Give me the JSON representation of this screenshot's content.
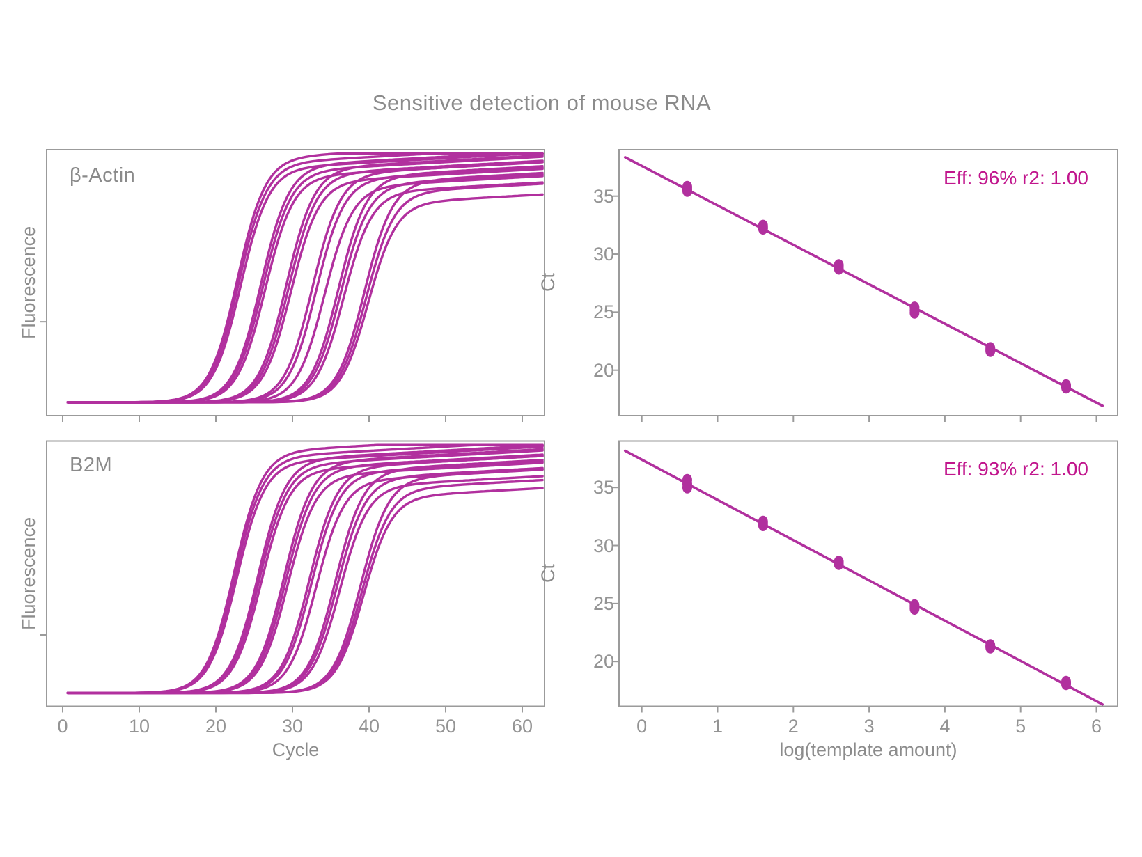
{
  "title": "Sensitive detection of mouse RNA",
  "colors": {
    "curve_magenta": "#b1309e",
    "annotation_magenta": "#c1168d",
    "axis_gray": "#9b9b9b",
    "label_gray": "#8c8c8c",
    "tick_label_gray": "#949494",
    "background": "#ffffff"
  },
  "chart_data": [
    {
      "id": "amplification-beta-actin",
      "type": "line",
      "panel_label": "β-Actin",
      "xlabel": "",
      "ylabel": "Fluorescence",
      "xlim": [
        -2.1,
        62.9
      ],
      "xticks": [
        0,
        10,
        20,
        30,
        40,
        50,
        60
      ],
      "xtick_labels_shown": false,
      "ylim": [
        0,
        1
      ],
      "ytick_fractions": [
        0.353
      ],
      "baseline_fraction": 0.05,
      "sigmoid_steepness": 0.55,
      "replicates_per_group": 3,
      "groups": [
        {
          "ct": 18.6,
          "rise_midpoint_cycle": 22.8,
          "replicate_cycle_shifts": [
            0,
            0.2,
            0.45
          ],
          "plateau_fractions": [
            0.97,
            0.95,
            0.93
          ]
        },
        {
          "ct": 21.8,
          "rise_midpoint_cycle": 25.9,
          "replicate_cycle_shifts": [
            0,
            0.25,
            0.55
          ],
          "plateau_fractions": [
            0.94,
            0.92,
            0.9
          ]
        },
        {
          "ct": 25.2,
          "rise_midpoint_cycle": 29.2,
          "replicate_cycle_shifts": [
            0,
            0.3,
            0.6
          ],
          "plateau_fractions": [
            0.93,
            0.91,
            0.88
          ]
        },
        {
          "ct": 28.9,
          "rise_midpoint_cycle": 32.6,
          "replicate_cycle_shifts": [
            0,
            0.5,
            1.6
          ],
          "plateau_fractions": [
            0.91,
            0.89,
            0.86
          ]
        },
        {
          "ct": 32.2,
          "rise_midpoint_cycle": 36.0,
          "replicate_cycle_shifts": [
            0,
            0.3,
            0.7
          ],
          "plateau_fractions": [
            0.9,
            0.87,
            0.84
          ]
        },
        {
          "ct": 35.6,
          "rise_midpoint_cycle": 39.4,
          "replicate_cycle_shifts": [
            0,
            0.25,
            0.5
          ],
          "plateau_fractions": [
            0.88,
            0.84,
            0.8
          ]
        }
      ]
    },
    {
      "id": "standard-curve-beta-actin",
      "type": "scatter",
      "annotation": "Eff: 96% r2: 1.00",
      "xlabel": "",
      "ylabel": "Ct",
      "xlim": [
        -0.35,
        6.35
      ],
      "xticks": [
        0,
        1,
        2,
        3,
        4,
        5,
        6
      ],
      "xtick_labels_shown": false,
      "ylim": [
        16.1,
        39.0
      ],
      "yticks": [
        20,
        25,
        30,
        35
      ],
      "points_x": [
        0.6,
        1.6,
        2.6,
        3.6,
        4.6,
        5.6
      ],
      "points_ct_replicates": [
        [
          35.45,
          35.6,
          35.8
        ],
        [
          32.2,
          32.3,
          32.45
        ],
        [
          28.75,
          28.9,
          29.05
        ],
        [
          24.95,
          25.15,
          25.4
        ],
        [
          21.65,
          21.75,
          21.9
        ],
        [
          18.5,
          18.6,
          18.7
        ]
      ],
      "fit_line": {
        "slope": -3.4,
        "intercept": 37.6,
        "x_start": -0.22,
        "x_end": 6.08
      }
    },
    {
      "id": "amplification-b2m",
      "type": "line",
      "panel_label": "B2M",
      "xlabel": "Cycle",
      "ylabel": "Fluorescence",
      "xlim": [
        -2.1,
        62.9
      ],
      "xticks": [
        0,
        10,
        20,
        30,
        40,
        50,
        60
      ],
      "xtick_labels_shown": true,
      "ylim": [
        0,
        1
      ],
      "ytick_fractions": [
        0.269
      ],
      "baseline_fraction": 0.05,
      "sigmoid_steepness": 0.55,
      "replicates_per_group": 3,
      "groups": [
        {
          "ct": 18.2,
          "rise_midpoint_cycle": 22.4,
          "replicate_cycle_shifts": [
            0,
            0.15,
            0.35
          ],
          "plateau_fractions": [
            0.96,
            0.94,
            0.92
          ]
        },
        {
          "ct": 21.3,
          "rise_midpoint_cycle": 25.5,
          "replicate_cycle_shifts": [
            0,
            0.2,
            0.45
          ],
          "plateau_fractions": [
            0.93,
            0.91,
            0.89
          ]
        },
        {
          "ct": 24.7,
          "rise_midpoint_cycle": 28.9,
          "replicate_cycle_shifts": [
            0,
            0.25,
            0.5
          ],
          "plateau_fractions": [
            0.92,
            0.9,
            0.87
          ]
        },
        {
          "ct": 28.5,
          "rise_midpoint_cycle": 32.2,
          "replicate_cycle_shifts": [
            0,
            0.3,
            0.9
          ],
          "plateau_fractions": [
            0.9,
            0.88,
            0.85
          ]
        },
        {
          "ct": 31.9,
          "rise_midpoint_cycle": 35.6,
          "replicate_cycle_shifts": [
            0,
            0.25,
            0.6
          ],
          "plateau_fractions": [
            0.89,
            0.86,
            0.83
          ]
        },
        {
          "ct": 35.3,
          "rise_midpoint_cycle": 38.9,
          "replicate_cycle_shifts": [
            0,
            0.2,
            0.4
          ],
          "plateau_fractions": [
            0.86,
            0.82,
            0.79
          ]
        }
      ]
    },
    {
      "id": "standard-curve-b2m",
      "type": "scatter",
      "annotation": "Eff: 93% r2: 1.00",
      "xlabel": "log(template amount)",
      "ylabel": "Ct",
      "xlim": [
        -0.35,
        6.35
      ],
      "xticks": [
        0,
        1,
        2,
        3,
        4,
        5,
        6
      ],
      "xtick_labels_shown": true,
      "ylim": [
        16.1,
        39.0
      ],
      "yticks": [
        20,
        25,
        30,
        35
      ],
      "points_x": [
        0.6,
        1.6,
        2.6,
        3.6,
        4.6,
        5.6
      ],
      "points_ct_replicates": [
        [
          35.0,
          35.3,
          35.65
        ],
        [
          31.75,
          31.9,
          32.05
        ],
        [
          28.4,
          28.5,
          28.6
        ],
        [
          24.55,
          24.7,
          24.85
        ],
        [
          21.2,
          21.3,
          21.4
        ],
        [
          18.05,
          18.15,
          18.25
        ]
      ],
      "fit_line": {
        "slope": -3.47,
        "intercept": 37.4,
        "x_start": -0.22,
        "x_end": 6.08
      }
    }
  ]
}
